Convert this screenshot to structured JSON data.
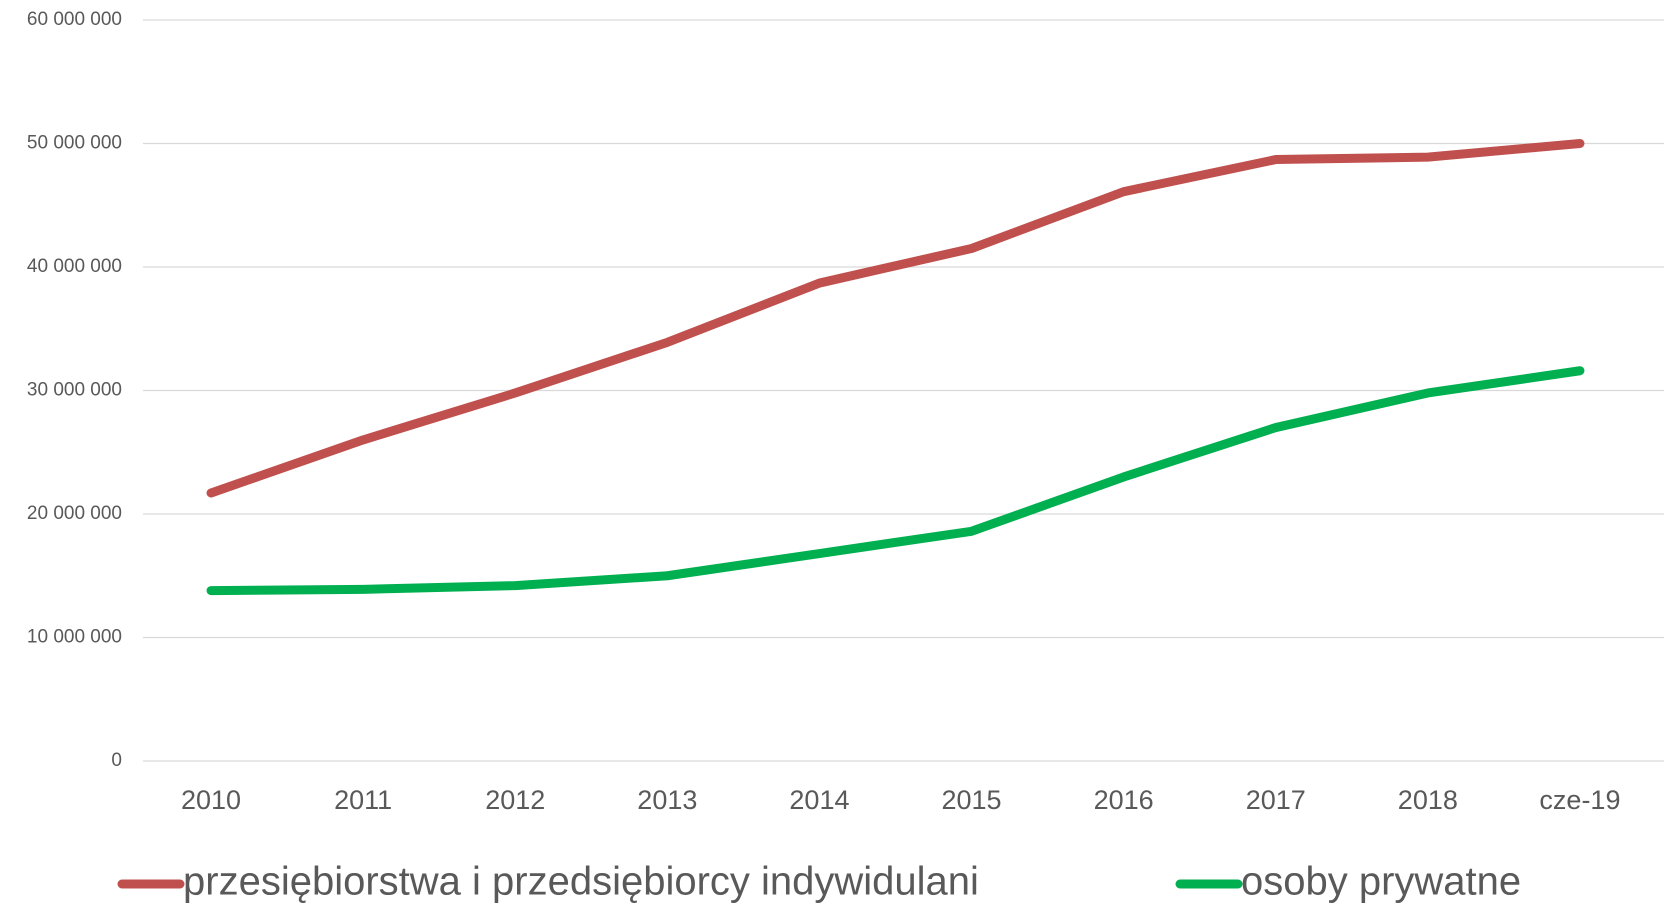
{
  "chart_data": {
    "type": "line",
    "categories": [
      "2010",
      "2011",
      "2012",
      "2013",
      "2014",
      "2015",
      "2016",
      "2017",
      "2018",
      "cze-19"
    ],
    "series": [
      {
        "name": "przesiębiorstwa i przedsiębiorcy indywidulani",
        "color": "#c0504d",
        "values": [
          21700000,
          26000000,
          29800000,
          33900000,
          38700000,
          41500000,
          46100000,
          48700000,
          48900000,
          50000000
        ]
      },
      {
        "name": "osoby prywatne",
        "color": "#00b050",
        "values": [
          13800000,
          13900000,
          14200000,
          15000000,
          16800000,
          18600000,
          23000000,
          27000000,
          29800000,
          31600000
        ]
      }
    ],
    "ylim": [
      0,
      60000000
    ],
    "yticks": [
      0,
      {
        "value": 10000000,
        "label": "10 000 000"
      },
      {
        "value": 20000000,
        "label": "20 000 000"
      },
      {
        "value": 30000000,
        "label": "30 000 000"
      },
      {
        "value": 40000000,
        "label": "40 000 000"
      },
      {
        "value": 50000000,
        "label": "50 000 000"
      },
      {
        "value": 60000000,
        "label": "60 000 000"
      }
    ],
    "grid": true,
    "legend": "bottom"
  }
}
